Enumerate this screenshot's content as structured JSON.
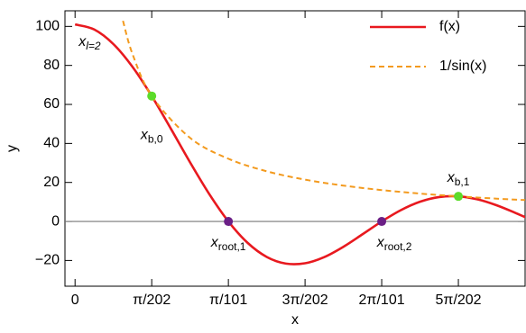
{
  "chart_data": {
    "type": "line",
    "xlabel": "x",
    "ylabel": "y",
    "xlim": [
      -0.00205,
      0.0913
    ],
    "ylim": [
      -33.2,
      108
    ],
    "xticks": [
      {
        "value": 0,
        "label": "0"
      },
      {
        "value": 0.015553,
        "label": "π/202"
      },
      {
        "value": 0.031105,
        "label": "π/101"
      },
      {
        "value": 0.046658,
        "label": "3π/202"
      },
      {
        "value": 0.06221,
        "label": "2π/101"
      },
      {
        "value": 0.077763,
        "label": "5π/202"
      }
    ],
    "yticks": [
      {
        "value": -20,
        "label": "−20"
      },
      0,
      20,
      40,
      60,
      80,
      100
    ],
    "zero_line": true,
    "legend": "top-right",
    "series": [
      {
        "name": "f(x)",
        "color": "#e8191f",
        "dash": false,
        "x": [
          0,
          0.003888,
          0.007776,
          0.011664,
          0.015553,
          0.019441,
          0.023329,
          0.027217,
          0.031105,
          0.034993,
          0.038881,
          0.042769,
          0.046658,
          0.050546,
          0.054434,
          0.058322,
          0.06221,
          0.066098,
          0.069986,
          0.073874,
          0.077763,
          0.081651,
          0.085539,
          0.089427,
          0.093315
        ],
        "values": [
          101,
          98.42,
          90.93,
          79.21,
          64.3,
          47.52,
          30.31,
          14.06,
          0,
          -10.94,
          -18.19,
          -21.6,
          -21.43,
          -18.28,
          -12.99,
          -6.56,
          0,
          5.79,
          10.1,
          12.51,
          12.86,
          11.32,
          8.27,
          4.28,
          0
        ]
      },
      {
        "name": "1/sin(x)",
        "color": "#f39a1e",
        "dash": true,
        "x": [
          0.00972,
          0.011664,
          0.015553,
          0.023329,
          0.031105,
          0.038881,
          0.046658,
          0.054434,
          0.06221,
          0.069986,
          0.077763,
          0.085539,
          0.091293
        ],
        "values": [
          102.88,
          85.73,
          64.3,
          42.87,
          32.15,
          25.72,
          21.44,
          18.38,
          16.08,
          14.29,
          12.86,
          11.69,
          10.96
        ]
      }
    ],
    "start_label": {
      "text": "x",
      "sub": "l=2"
    },
    "points": [
      {
        "x": 0.015553,
        "y": 64.3,
        "color": "#5cdb2a",
        "text": "x",
        "sub": "b,0"
      },
      {
        "x": 0.031105,
        "y": 0,
        "color": "#6b1f86",
        "text": "x",
        "sub": "root,1"
      },
      {
        "x": 0.06221,
        "y": 0,
        "color": "#6b1f86",
        "text": "x",
        "sub": "root,2"
      },
      {
        "x": 0.077763,
        "y": 12.86,
        "color": "#5cdb2a",
        "text": "x",
        "sub": "b,1"
      }
    ]
  }
}
